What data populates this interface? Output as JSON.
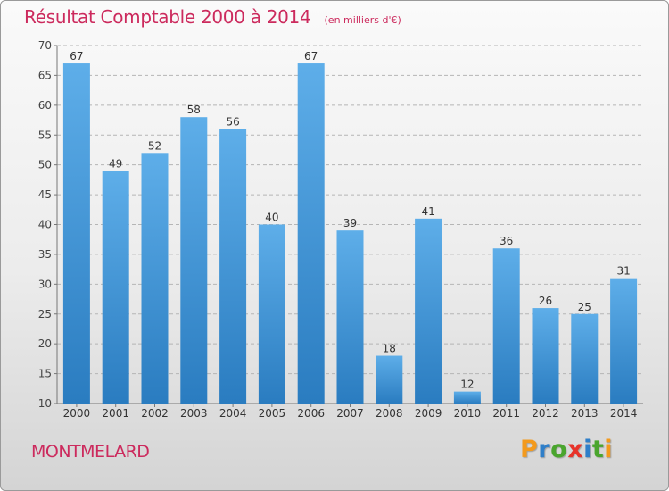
{
  "header": {
    "title": "Résultat Comptable 2000 à 2014",
    "unit": "(en milliers d'€)"
  },
  "footer": {
    "commune": "MONTMELARD",
    "logo": "Proxiti",
    "logo_colors": [
      "#f39a1d",
      "#2f7fc9",
      "#4aa52e",
      "#e8332a",
      "#2f7fc9",
      "#4aa52e",
      "#f39a1d"
    ]
  },
  "chart_data": {
    "type": "bar",
    "title": "Résultat Comptable 2000 à 2014",
    "unit_label": "(en milliers d'€)",
    "xlabel": "",
    "ylabel": "",
    "categories": [
      "2000",
      "2001",
      "2002",
      "2003",
      "2004",
      "2005",
      "2006",
      "2007",
      "2008",
      "2009",
      "2010",
      "2011",
      "2012",
      "2013",
      "2014"
    ],
    "values": [
      67,
      49,
      52,
      58,
      56,
      40,
      67,
      39,
      18,
      41,
      12,
      36,
      26,
      25,
      31
    ],
    "ylim": [
      10,
      70
    ],
    "yticks": [
      10,
      15,
      20,
      25,
      30,
      35,
      40,
      45,
      50,
      55,
      60,
      65,
      70
    ],
    "grid": true,
    "bar_color_top": "#5eaee9",
    "bar_color_bottom": "#2a7cc0"
  }
}
